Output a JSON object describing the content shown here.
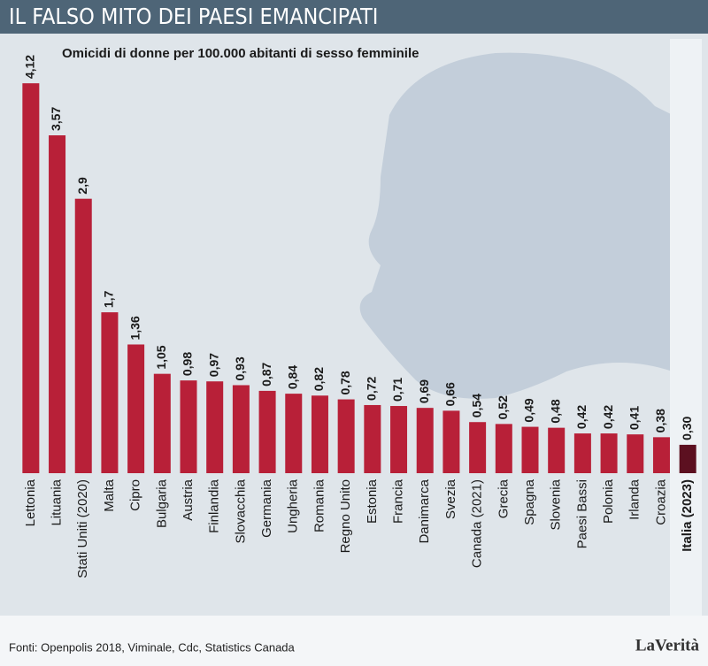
{
  "chart_data": {
    "type": "bar",
    "title": "IL FALSO MITO DEI PAESI EMANCIPATI",
    "subtitle": "Omicidi di donne per 100.000 abitanti di sesso femminile",
    "source": "Fonti: Openpolis 2018, Viminale, Cdc, Statistics Canada",
    "brand": "LaVerità",
    "categories": [
      "Lettonia",
      "Lituania",
      "Stati Uniti (2020)",
      "Malta",
      "Cipro",
      "Bulgaria",
      "Austria",
      "Finlandia",
      "Slovacchia",
      "Germania",
      "Ungheria",
      "Romania",
      "Regno Unito",
      "Estonia",
      "Francia",
      "Danimarca",
      "Svezia",
      "Canada (2021)",
      "Grecia",
      "Spagna",
      "Slovenia",
      "Paesi Bassi",
      "Polonia",
      "Irlanda",
      "Croazia",
      "Italia (2023)"
    ],
    "values": [
      4.12,
      3.57,
      2.9,
      1.7,
      1.36,
      1.05,
      0.98,
      0.97,
      0.93,
      0.87,
      0.84,
      0.82,
      0.78,
      0.72,
      0.71,
      0.69,
      0.66,
      0.54,
      0.52,
      0.49,
      0.48,
      0.42,
      0.42,
      0.41,
      0.38,
      0.3
    ],
    "value_labels": [
      "4,12",
      "3,57",
      "2,9",
      "1,7",
      "1,36",
      "1,05",
      "0,98",
      "0,97",
      "0,93",
      "0,87",
      "0,84",
      "0,82",
      "0,78",
      "0,72",
      "0,71",
      "0,69",
      "0,66",
      "0,54",
      "0,52",
      "0,49",
      "0,48",
      "0,42",
      "0,42",
      "0,41",
      "0,38",
      "0,30"
    ],
    "color": "#b82038",
    "highlight_color": "#5c1020"
  }
}
